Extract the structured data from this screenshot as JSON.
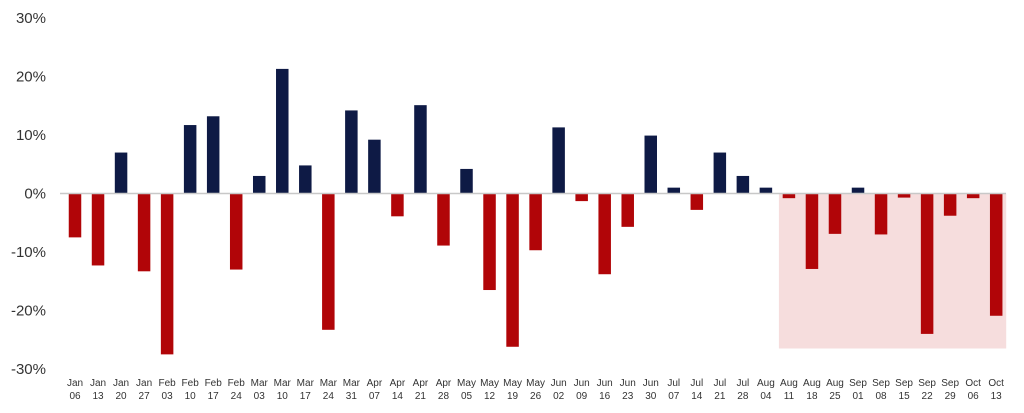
{
  "chart_data": {
    "type": "bar",
    "title": "",
    "xlabel": "",
    "ylabel": "",
    "ylim": [
      -30,
      30
    ],
    "y_ticks": [
      30,
      20,
      10,
      0,
      -10,
      -20,
      -30
    ],
    "y_tick_labels": [
      "30%",
      "20%",
      "10%",
      "0%",
      "-10%",
      "-20%",
      "-30%"
    ],
    "grid": false,
    "colors": {
      "positive": "#0e1a45",
      "negative": "#b10508",
      "highlight": "#f6dddd",
      "axis": "#c8c8c8"
    },
    "highlight_range": {
      "from": "Aug 11",
      "to": "Oct 13"
    },
    "categories": [
      [
        "Jan",
        "06"
      ],
      [
        "Jan",
        "13"
      ],
      [
        "Jan",
        "20"
      ],
      [
        "Jan",
        "27"
      ],
      [
        "Feb",
        "03"
      ],
      [
        "Feb",
        "10"
      ],
      [
        "Feb",
        "17"
      ],
      [
        "Feb",
        "24"
      ],
      [
        "Mar",
        "03"
      ],
      [
        "Mar",
        "10"
      ],
      [
        "Mar",
        "17"
      ],
      [
        "Mar",
        "24"
      ],
      [
        "Mar",
        "31"
      ],
      [
        "Apr",
        "07"
      ],
      [
        "Apr",
        "14"
      ],
      [
        "Apr",
        "21"
      ],
      [
        "Apr",
        "28"
      ],
      [
        "May",
        "05"
      ],
      [
        "May",
        "12"
      ],
      [
        "May",
        "19"
      ],
      [
        "May",
        "26"
      ],
      [
        "Jun",
        "02"
      ],
      [
        "Jun",
        "09"
      ],
      [
        "Jun",
        "16"
      ],
      [
        "Jun",
        "23"
      ],
      [
        "Jun",
        "30"
      ],
      [
        "Jul",
        "07"
      ],
      [
        "Jul",
        "14"
      ],
      [
        "Jul",
        "21"
      ],
      [
        "Jul",
        "28"
      ],
      [
        "Aug",
        "04"
      ],
      [
        "Aug",
        "11"
      ],
      [
        "Aug",
        "18"
      ],
      [
        "Aug",
        "25"
      ],
      [
        "Sep",
        "01"
      ],
      [
        "Sep",
        "08"
      ],
      [
        "Sep",
        "15"
      ],
      [
        "Sep",
        "22"
      ],
      [
        "Sep",
        "29"
      ],
      [
        "Oct",
        "06"
      ],
      [
        "Oct",
        "13"
      ]
    ],
    "values": [
      -7.5,
      -12.3,
      7.0,
      -13.3,
      -27.5,
      11.7,
      13.2,
      -13.0,
      3.0,
      21.3,
      4.8,
      -23.3,
      14.2,
      9.2,
      -3.9,
      15.1,
      -8.9,
      4.2,
      -16.5,
      -26.2,
      -9.7,
      11.3,
      -1.3,
      -13.8,
      -5.7,
      9.9,
      1.0,
      -2.8,
      7.0,
      3.0,
      1.0,
      -0.8,
      -12.9,
      -6.9,
      1.0,
      -7.0,
      -0.7,
      -24.0,
      -3.8,
      -0.8,
      -20.9
    ]
  }
}
